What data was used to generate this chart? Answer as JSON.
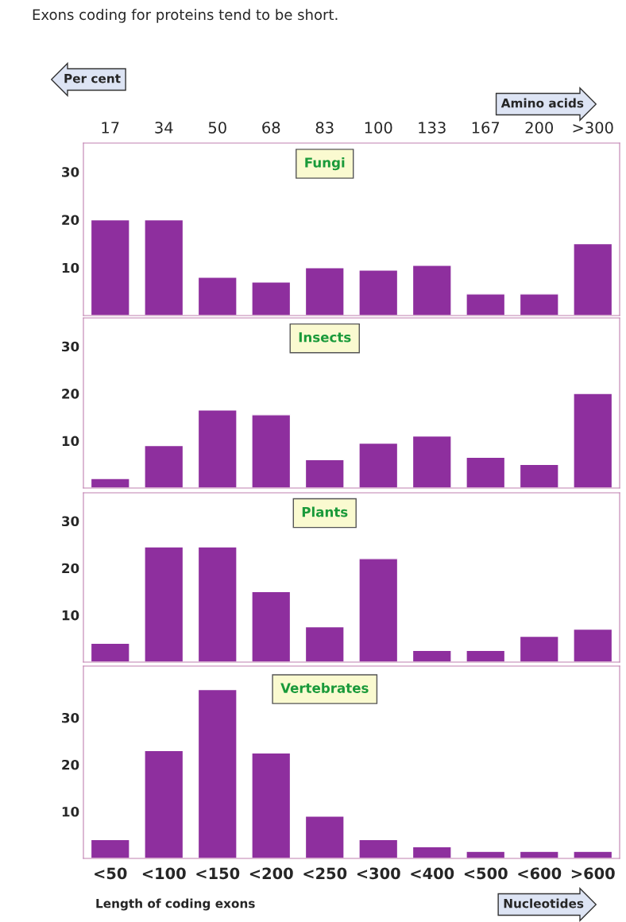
{
  "chart_data": [
    {
      "type": "bar",
      "title": "Exons coding for proteins tend to be short.",
      "subtitle": "Fungi",
      "ylabel": "Per cent",
      "x2label": "Amino acids",
      "categories": [
        "17",
        "34",
        "50",
        "68",
        "83",
        "100",
        "133",
        "167",
        "200",
        ">300"
      ],
      "values": [
        20,
        20,
        8,
        7,
        10,
        9.5,
        10.5,
        4.5,
        4.5,
        15
      ],
      "color": "#8e2f9e",
      "ylim": [
        0,
        36
      ],
      "yticks": [
        10,
        20,
        30
      ]
    },
    {
      "type": "bar",
      "subtitle": "Insects",
      "categories": [
        null,
        null,
        null,
        null,
        null,
        null,
        null,
        null,
        null,
        null
      ],
      "values": [
        2,
        9,
        16.5,
        15.5,
        6,
        9.5,
        11,
        6.5,
        5,
        20
      ],
      "color": "#8e2f9e",
      "ylim": [
        0,
        36
      ],
      "yticks": [
        10,
        20,
        30
      ],
      "tick_labels": "y"
    },
    {
      "type": "bar",
      "subtitle": "Plants",
      "categories": [
        null,
        null,
        null,
        null,
        null,
        null,
        null,
        null,
        null,
        null
      ],
      "values": [
        4,
        24.5,
        24.5,
        15,
        7.5,
        22,
        2.5,
        2.5,
        5.5,
        7
      ],
      "color": "#8e2f9e",
      "ylim": [
        0,
        36
      ],
      "yticks": [
        10,
        20,
        30
      ],
      "tick_labels": "y"
    },
    {
      "type": "bar",
      "subtitle": "Vertebrates",
      "xlabel": "Length of coding exons",
      "annotations": [
        "Nucleotides"
      ],
      "categories": [
        "<50",
        "<100",
        "<150",
        "<200",
        "<250",
        "<300",
        "<400",
        "<500",
        "<600",
        ">600"
      ],
      "values": [
        4,
        23,
        36,
        22.5,
        9,
        4,
        2.5,
        1.5,
        1.5,
        1.5
      ],
      "color": "#8e2f9e",
      "ylim": [
        0,
        41
      ],
      "yticks": [
        10,
        20,
        30
      ]
    }
  ]
}
